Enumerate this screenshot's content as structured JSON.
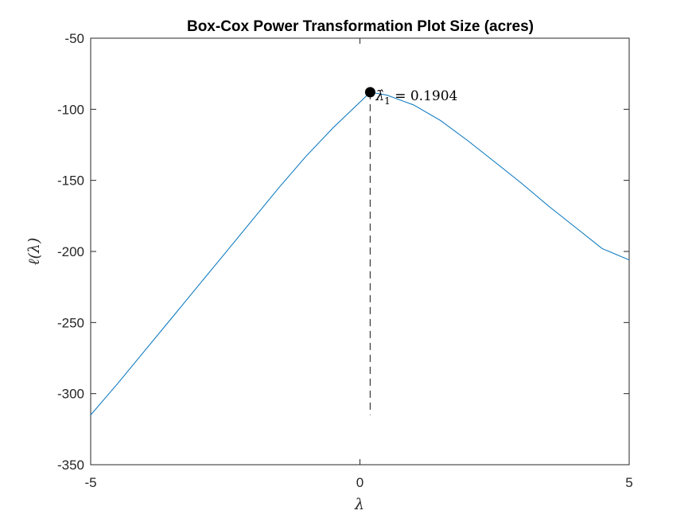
{
  "chart_data": {
    "type": "line",
    "title": "Box-Cox Power Transformation Plot Size (acres)",
    "xlabel": "λ",
    "ylabel": "ℓ(λ)",
    "xlim": [
      -5,
      5
    ],
    "ylim": [
      -350,
      -50
    ],
    "xticks": [
      -5,
      0,
      5
    ],
    "yticks": [
      -50,
      -100,
      -150,
      -200,
      -250,
      -300,
      -350
    ],
    "grid": false,
    "series": [
      {
        "color": "#0072BD",
        "x": [
          -5,
          -4.5,
          -4,
          -3.5,
          -3,
          -2.5,
          -2,
          -1.5,
          -1,
          -0.5,
          0,
          0.19,
          0.5,
          1,
          1.5,
          2,
          2.5,
          3,
          3.5,
          4,
          4.5,
          5
        ],
        "y": [
          -315,
          -293,
          -270,
          -247,
          -224,
          -201,
          -178,
          -155,
          -133,
          -113,
          -95,
          -88,
          -90,
          -97,
          -108,
          -122,
          -137,
          -152,
          -168,
          -183,
          -198,
          -206
        ]
      }
    ],
    "optimum": {
      "lambda": 0.1904,
      "loglik": -88,
      "label_lhs": "λ̂",
      "label_sub": "1",
      "label_rhs": " = 0.1904",
      "marker_color": "#000000",
      "dashed_line_bottom": -315
    }
  }
}
